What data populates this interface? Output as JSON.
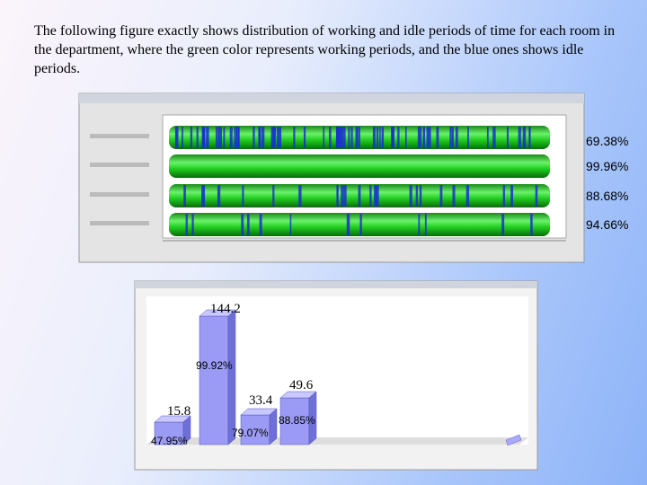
{
  "paragraph": "The following figure exactly shows distribution of working and idle periods of time for each room in the department, where the green color represents working periods, and the blue ones shows idle periods.",
  "figure1": {
    "labels": [
      "69.38%",
      "99.96%",
      "88.68%",
      "94.66%"
    ]
  },
  "figure2": {
    "values": [
      "15.8",
      "144.2",
      "33.4",
      "49.6"
    ],
    "percents": [
      "47.95%",
      "99.92%",
      "79.07%",
      "88.85%"
    ]
  }
}
